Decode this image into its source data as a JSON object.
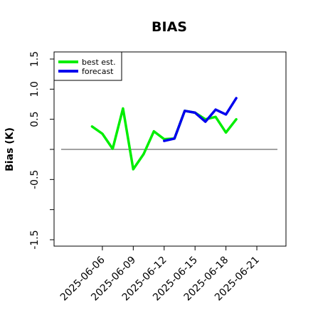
{
  "chart_data": {
    "type": "line",
    "title": "BIAS",
    "ylabel": "Bias (K)",
    "xlabel": "",
    "ylim": [
      -1.6,
      1.6
    ],
    "xlim": [
      "2025-06-02",
      "2025-06-23"
    ],
    "y_ticks": [
      -1.5,
      -1.0,
      -0.5,
      0.0,
      0.5,
      1.0,
      1.5
    ],
    "y_tick_labels": [
      "-1.5",
      "",
      "-0.5",
      "",
      "0.5",
      "1.0",
      "1.5"
    ],
    "x_ticks": [
      "2025-06-06",
      "2025-06-09",
      "2025-06-12",
      "2025-06-15",
      "2025-06-18",
      "2025-06-21"
    ],
    "x_tick_labels": [
      "2025-06-06",
      "2025-06-09",
      "2025-06-12",
      "2025-06-15",
      "2025-06-18",
      "2025-06-21"
    ],
    "highlight_tick": "2025-06-12",
    "highlight_color": "#228b22",
    "reference_line": 0.0,
    "grid": false,
    "legend_position": "top-left",
    "series": [
      {
        "name": "best est.",
        "color": "#00ee00",
        "points": [
          {
            "x": "2025-06-05",
            "y": 0.38
          },
          {
            "x": "2025-06-06",
            "y": 0.26
          },
          {
            "x": "2025-06-07",
            "y": 0.01
          },
          {
            "x": "2025-06-08",
            "y": 0.68
          },
          {
            "x": "2025-06-09",
            "y": -0.33
          },
          {
            "x": "2025-06-10",
            "y": -0.08
          },
          {
            "x": "2025-06-11",
            "y": 0.3
          },
          {
            "x": "2025-06-12",
            "y": 0.17
          },
          {
            "x": "2025-06-13",
            "y": 0.18
          },
          {
            "x": "2025-06-14",
            "y": 0.64
          },
          {
            "x": "2025-06-15",
            "y": 0.61
          },
          {
            "x": "2025-06-16",
            "y": 0.5
          },
          {
            "x": "2025-06-17",
            "y": 0.54
          },
          {
            "x": "2025-06-18",
            "y": 0.28
          },
          {
            "x": "2025-06-19",
            "y": 0.5
          }
        ]
      },
      {
        "name": "forecast",
        "color": "#0000ee",
        "points": [
          {
            "x": "2025-06-12",
            "y": 0.14
          },
          {
            "x": "2025-06-13",
            "y": 0.18
          },
          {
            "x": "2025-06-14",
            "y": 0.64
          },
          {
            "x": "2025-06-15",
            "y": 0.61
          },
          {
            "x": "2025-06-16",
            "y": 0.46
          },
          {
            "x": "2025-06-17",
            "y": 0.66
          },
          {
            "x": "2025-06-18",
            "y": 0.58
          },
          {
            "x": "2025-06-19",
            "y": 0.85
          }
        ]
      }
    ]
  }
}
